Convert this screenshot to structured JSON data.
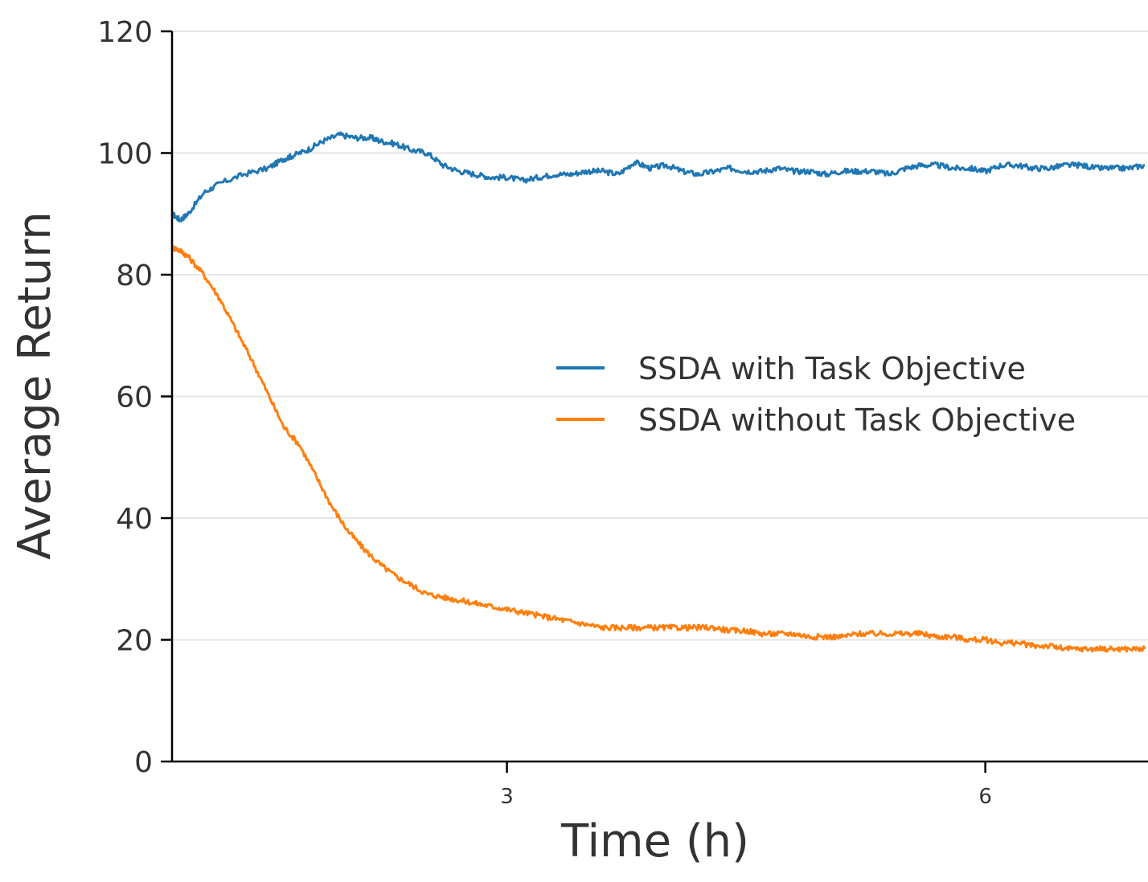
{
  "chart_data": {
    "type": "line",
    "xlabel": "Time (h)",
    "ylabel": "Average Return",
    "xlim": [
      0.9,
      7.0
    ],
    "ylim": [
      0,
      120
    ],
    "x_ticks": [
      3,
      6
    ],
    "y_ticks": [
      0,
      20,
      40,
      60,
      80,
      100,
      120
    ],
    "grid": "horizontal",
    "legend_position": "center-right",
    "series": [
      {
        "name": "SSDA with Task Objective",
        "color": "#1f77b4",
        "x": [
          0.9,
          0.95,
          1.0,
          1.1,
          1.2,
          1.35,
          1.5,
          1.6,
          1.65,
          1.75,
          1.85,
          1.95,
          2.05,
          2.15,
          2.2,
          2.3,
          2.4,
          2.5,
          2.6,
          2.7,
          2.8,
          2.9,
          3.0,
          3.1,
          3.2,
          3.3,
          3.4,
          3.5,
          3.6,
          3.7,
          3.8,
          3.9,
          4.0,
          4.1,
          4.2,
          4.3,
          4.4,
          4.5,
          4.6,
          4.7,
          4.8,
          4.9,
          5.0,
          5.1,
          5.2,
          5.3,
          5.4,
          5.5,
          5.6,
          5.7,
          5.8,
          5.9,
          6.0,
          6.1,
          6.2,
          6.3,
          6.4,
          6.5,
          6.6,
          6.7,
          6.8,
          6.9,
          7.0
        ],
        "values": [
          90,
          89,
          90,
          93.5,
          95,
          96.5,
          97.5,
          99,
          99.5,
          100.5,
          102,
          103,
          102.5,
          102.5,
          102,
          101.5,
          100.5,
          100,
          98,
          97,
          96.5,
          96,
          96,
          95.5,
          96,
          96.5,
          96.5,
          97,
          97,
          96.5,
          98.5,
          97.5,
          98,
          97,
          96.5,
          97,
          97.5,
          97,
          97,
          97.5,
          97,
          97,
          96.5,
          97,
          97,
          97,
          96.5,
          97.5,
          98,
          98,
          97.5,
          97.5,
          97,
          98,
          98,
          97.5,
          97.5,
          98,
          98,
          97.5,
          97.5,
          97.5,
          98
        ]
      },
      {
        "name": "SSDA without Task Objective",
        "color": "#ff7f0e",
        "x": [
          0.9,
          0.95,
          1.0,
          1.1,
          1.2,
          1.3,
          1.4,
          1.5,
          1.6,
          1.7,
          1.8,
          1.9,
          2.0,
          2.1,
          2.2,
          2.3,
          2.4,
          2.5,
          2.6,
          2.7,
          2.8,
          2.9,
          3.0,
          3.1,
          3.2,
          3.3,
          3.4,
          3.5,
          3.6,
          3.7,
          3.8,
          3.9,
          4.0,
          4.1,
          4.2,
          4.3,
          4.4,
          4.5,
          4.6,
          4.7,
          4.8,
          4.9,
          5.0,
          5.1,
          5.2,
          5.3,
          5.4,
          5.5,
          5.6,
          5.7,
          5.8,
          5.9,
          6.0,
          6.1,
          6.2,
          6.3,
          6.4,
          6.5,
          6.6,
          6.7,
          6.8,
          6.9,
          7.0
        ],
        "values": [
          84.5,
          84,
          83,
          80,
          76,
          71,
          66,
          60.5,
          55,
          52,
          47,
          42,
          38,
          35,
          32.5,
          30.5,
          29,
          27.5,
          27,
          26.5,
          26,
          25.5,
          25,
          24.5,
          24,
          23.5,
          23,
          22.5,
          22,
          22,
          22,
          22,
          22,
          22,
          22,
          22,
          21.5,
          21.5,
          21,
          21,
          21,
          20.5,
          20.5,
          20.5,
          21,
          21,
          21,
          21,
          21,
          20.5,
          20.5,
          20,
          20,
          19.5,
          19.5,
          19,
          19,
          18.5,
          18.5,
          18.5,
          18.5,
          18.5,
          18.5
        ]
      }
    ]
  }
}
